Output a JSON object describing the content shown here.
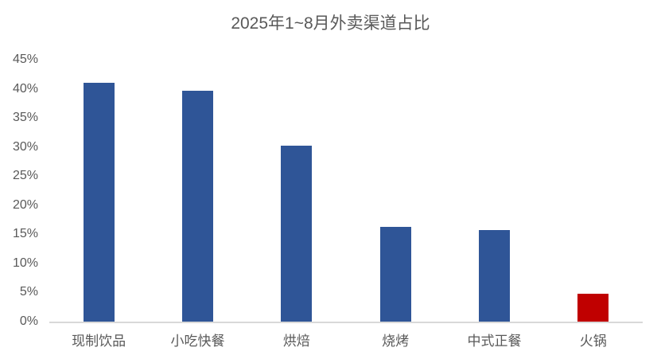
{
  "chart_data": {
    "type": "bar",
    "title": "2025年1~8月外卖渠道占比",
    "categories": [
      "现制饮品",
      "小吃快餐",
      "烘焙",
      "烧烤",
      "中式正餐",
      "火锅"
    ],
    "values": [
      41,
      39.7,
      30.2,
      16.3,
      15.7,
      4.8
    ],
    "unit": "%",
    "ylim": [
      0,
      45
    ],
    "y_tick_step": 5,
    "y_tick_labels": [
      "0%",
      "5%",
      "10%",
      "15%",
      "20%",
      "25%",
      "30%",
      "35%",
      "40%",
      "45%"
    ],
    "grid": false,
    "legend": "none",
    "bar_colors": [
      "#2F5597",
      "#2F5597",
      "#2F5597",
      "#2F5597",
      "#2F5597",
      "#C00000"
    ],
    "highlight": {
      "category": "火锅",
      "color": "#C00000"
    },
    "default_bar_color": "#2F5597",
    "axis_line_color": "#D9D9D9",
    "text_color": "#595959",
    "background_color": "#FFFFFF"
  }
}
